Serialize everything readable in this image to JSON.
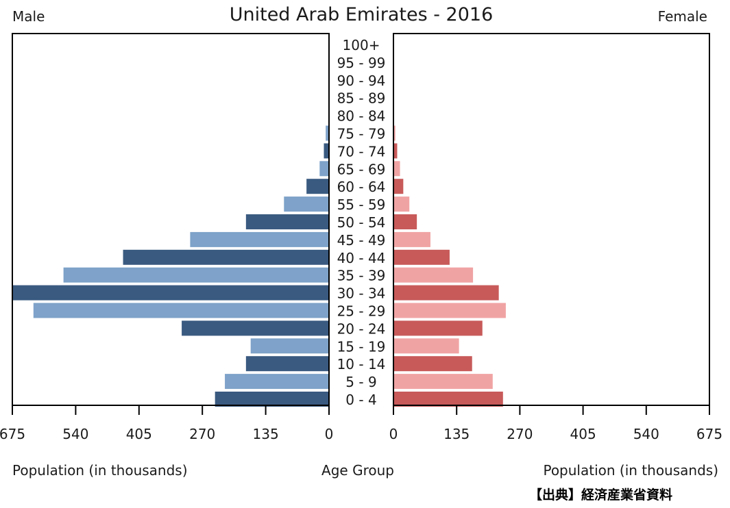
{
  "source_note": "【出典】経済産業省資料",
  "chart_data": {
    "type": "bar",
    "orientation": "horizontal",
    "title": "United Arab Emirates - 2016",
    "left_label": "Male",
    "right_label": "Female",
    "center_label": "Age Group",
    "xlabel_left": "Population (in thousands)",
    "xlabel_right": "Population (in thousands)",
    "xlim": [
      0,
      675
    ],
    "x_ticks": [
      "675",
      "540",
      "405",
      "270",
      "135",
      "0"
    ],
    "x_ticks_right": [
      "0",
      "135",
      "270",
      "405",
      "540",
      "675"
    ],
    "categories": [
      "100+",
      "95 - 99",
      "90 - 94",
      "85 - 89",
      "80 - 84",
      "75 - 79",
      "70 - 74",
      "65 - 69",
      "60 - 64",
      "55 - 59",
      "50 - 54",
      "45 - 49",
      "40 - 44",
      "35 - 39",
      "30 - 34",
      "25 - 29",
      "20 - 24",
      "15 - 19",
      "10 - 14",
      "5 - 9",
      "0 - 4"
    ],
    "series": [
      {
        "name": "Male",
        "values": [
          0,
          0,
          0,
          0,
          1,
          7,
          11,
          20,
          48,
          96,
          177,
          296,
          439,
          566,
          676,
          630,
          314,
          167,
          177,
          222,
          243
        ]
      },
      {
        "name": "Female",
        "values": [
          0,
          0,
          0,
          0,
          1,
          4,
          8,
          14,
          21,
          34,
          50,
          79,
          120,
          170,
          225,
          240,
          190,
          140,
          168,
          212,
          234
        ]
      }
    ],
    "colors": {
      "male_dark": "#3a5a80",
      "male_light": "#7ea2c9",
      "female_dark": "#c85a5a",
      "female_light": "#f0a3a3",
      "frame": "#000000"
    },
    "grid": false
  }
}
